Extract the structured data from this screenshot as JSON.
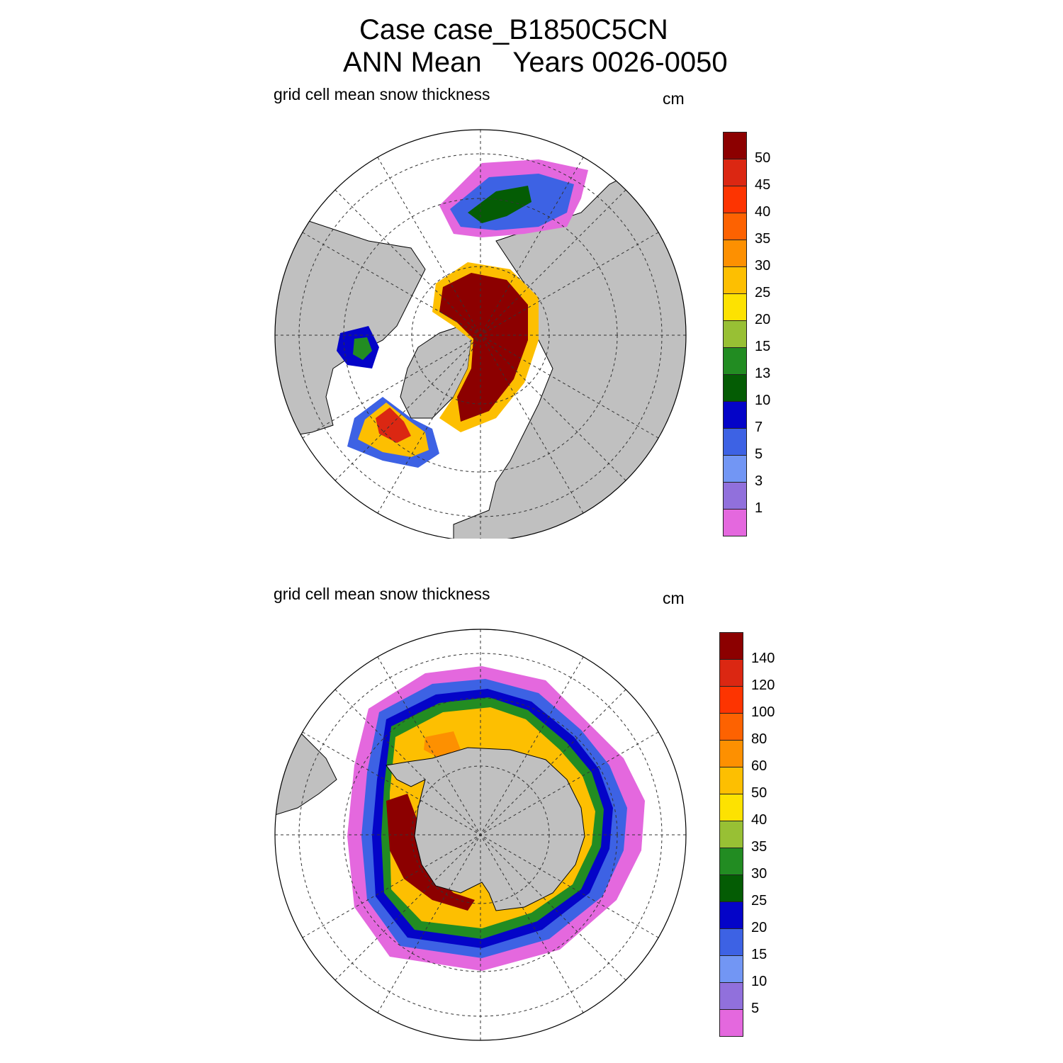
{
  "title": {
    "line1": "Case case_B1850C5CN",
    "line2": "ANN Mean    Years 0026-0050"
  },
  "panels": [
    {
      "id": "north",
      "label": "grid cell mean snow thickness",
      "units": "cm",
      "hemisphere": "north-polar-stereographic",
      "colorbar": {
        "colors": [
          "#e468de",
          "#9170dc",
          "#7296f4",
          "#3d62e4",
          "#0404c8",
          "#045c04",
          "#228c22",
          "#98c034",
          "#fde201",
          "#fdbf01",
          "#fd9001",
          "#fd6201",
          "#fd3401",
          "#db2712",
          "#8c0000"
        ],
        "tick_labels": [
          "1",
          "3",
          "5",
          "7",
          "10",
          "13",
          "15",
          "20",
          "25",
          "30",
          "35",
          "40",
          "45",
          "50"
        ]
      }
    },
    {
      "id": "south",
      "label": "grid cell mean snow thickness",
      "units": "cm",
      "hemisphere": "south-polar-stereographic",
      "colorbar": {
        "colors": [
          "#e468de",
          "#9170dc",
          "#7296f4",
          "#3d62e4",
          "#0404c8",
          "#045c04",
          "#228c22",
          "#98c034",
          "#fde201",
          "#fdbf01",
          "#fd9001",
          "#fd6201",
          "#fd3401",
          "#db2712",
          "#8c0000"
        ],
        "tick_labels": [
          "5",
          "10",
          "15",
          "20",
          "25",
          "30",
          "35",
          "40",
          "50",
          "60",
          "80",
          "100",
          "120",
          "140"
        ]
      }
    }
  ],
  "colors": {
    "land": "#c0c0c0",
    "ocean": "#ffffff",
    "grid": "#333333"
  }
}
